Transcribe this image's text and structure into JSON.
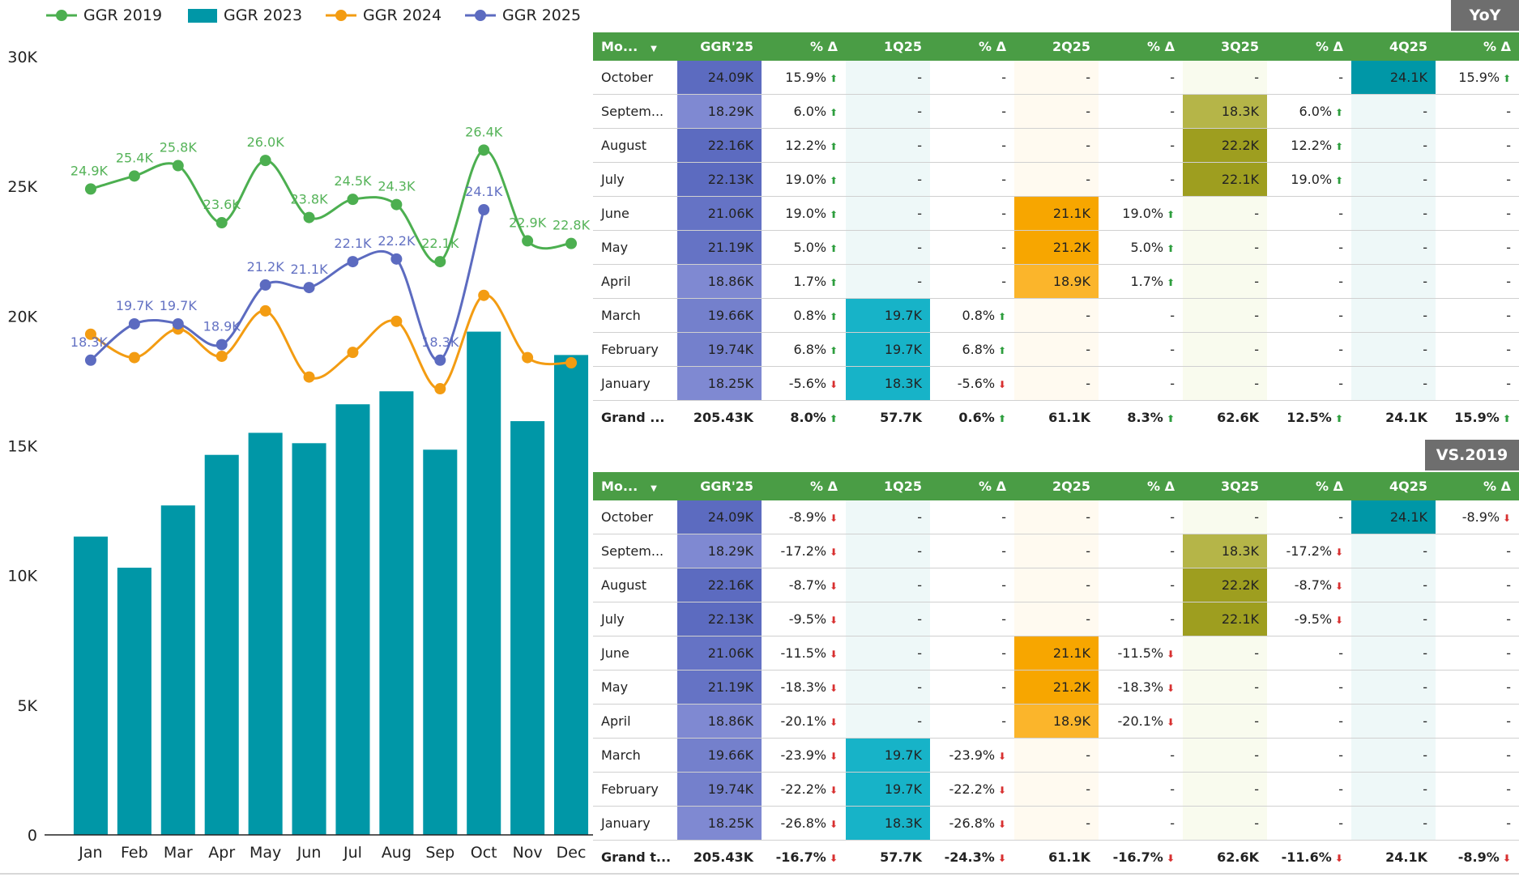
{
  "chart_data": {
    "type": "bar+line",
    "categories": [
      "Jan",
      "Feb",
      "Mar",
      "Apr",
      "May",
      "Jun",
      "Jul",
      "Aug",
      "Sep",
      "Oct",
      "Nov",
      "Dec"
    ],
    "ylim": [
      0,
      30000
    ],
    "yticks": [
      0,
      5000,
      10000,
      15000,
      20000,
      25000,
      30000
    ],
    "ytick_labels": [
      "0",
      "5K",
      "10K",
      "15K",
      "20K",
      "25K",
      "30K"
    ],
    "legend_position": "top",
    "bar_series": {
      "name": "GGR 2023",
      "color": "#0097a7",
      "values": [
        11500,
        10300,
        12700,
        14650,
        15500,
        15100,
        16600,
        17100,
        14850,
        19400,
        15950,
        18500
      ]
    },
    "line_series": [
      {
        "name": "GGR 2019",
        "color": "#4caf50",
        "labels_color": "#4caf50",
        "values": [
          24900,
          25400,
          25800,
          23600,
          26000,
          23800,
          24500,
          24300,
          22100,
          26400,
          22900,
          22800
        ],
        "labels": [
          "24.9K",
          "25.4K",
          "25.8K",
          "23.6K",
          "26.0K",
          "23.8K",
          "24.5K",
          "24.3K",
          "22.1K",
          "26.4K",
          "22.9K",
          "22.8K"
        ]
      },
      {
        "name": "GGR 2024",
        "color": "#f39c12",
        "values": [
          19300,
          18400,
          19500,
          18450,
          20200,
          17650,
          18600,
          19800,
          17200,
          20800,
          18400,
          18200
        ],
        "labels": []
      },
      {
        "name": "GGR 2025",
        "color": "#5c6bc0",
        "values": [
          18300,
          19700,
          19700,
          18900,
          21200,
          21100,
          22100,
          22200,
          18300,
          24100,
          null,
          null
        ],
        "labels": [
          "18.3K",
          "19.7K",
          "19.7K",
          "18.9K",
          "21.2K",
          "21.1K",
          "22.1K",
          "22.2K",
          "18.3K",
          "24.1K",
          "",
          ""
        ]
      }
    ],
    "legend_order": [
      "GGR 2019",
      "GGR 2023",
      "GGR 2024",
      "GGR 2025"
    ]
  },
  "tables": [
    {
      "title": "YoY",
      "headers": [
        "Mo...",
        "GGR'25",
        "% Δ",
        "1Q25",
        "% Δ",
        "2Q25",
        "% Δ",
        "3Q25",
        "% Δ",
        "4Q25",
        "% Δ"
      ],
      "rows": [
        {
          "m": "October",
          "g": "24.09K",
          "p": "15.9%",
          "d": "up",
          "v": [
            null,
            null,
            null,
            null,
            null,
            null,
            "24.1K",
            "15.9%"
          ],
          "vd": [
            null,
            null,
            null,
            null,
            null,
            null,
            null,
            "up"
          ],
          "gc": "#5c6bc0",
          "qc": [
            "#eef8f8",
            "#fffaf0",
            "#f9fbee",
            "#0097a7"
          ]
        },
        {
          "m": "Septem...",
          "g": "18.29K",
          "p": "6.0%",
          "d": "up",
          "v": [
            null,
            null,
            null,
            null,
            "18.3K",
            "6.0%",
            null,
            null
          ],
          "vd": [
            null,
            null,
            null,
            null,
            null,
            "up",
            null,
            null
          ],
          "gc": "#7f89d2",
          "qc": [
            "#eef8f8",
            "#fffaf0",
            "#b5b548",
            "#eef8f8"
          ]
        },
        {
          "m": "August",
          "g": "22.16K",
          "p": "12.2%",
          "d": "up",
          "v": [
            null,
            null,
            null,
            null,
            "22.2K",
            "12.2%",
            null,
            null
          ],
          "vd": [
            null,
            null,
            null,
            null,
            null,
            "up",
            null,
            null
          ],
          "gc": "#5c6bc0",
          "qc": [
            "#eef8f8",
            "#fffaf0",
            "#9e9e1f",
            "#eef8f8"
          ]
        },
        {
          "m": "July",
          "g": "22.13K",
          "p": "19.0%",
          "d": "up",
          "v": [
            null,
            null,
            null,
            null,
            "22.1K",
            "19.0%",
            null,
            null
          ],
          "vd": [
            null,
            null,
            null,
            null,
            null,
            "up",
            null,
            null
          ],
          "gc": "#5c6bc0",
          "qc": [
            "#eef8f8",
            "#fffaf0",
            "#9e9e1f",
            "#eef8f8"
          ]
        },
        {
          "m": "June",
          "g": "21.06K",
          "p": "19.0%",
          "d": "up",
          "v": [
            null,
            null,
            "21.1K",
            "19.0%",
            null,
            null,
            null,
            null
          ],
          "vd": [
            null,
            null,
            null,
            "up",
            null,
            null,
            null,
            null
          ],
          "gc": "#6573c5",
          "qc": [
            "#eef8f8",
            "#f7a600",
            "#f9fbee",
            "#eef8f8"
          ]
        },
        {
          "m": "May",
          "g": "21.19K",
          "p": "5.0%",
          "d": "up",
          "v": [
            null,
            null,
            "21.2K",
            "5.0%",
            null,
            null,
            null,
            null
          ],
          "vd": [
            null,
            null,
            null,
            "up",
            null,
            null,
            null,
            null
          ],
          "gc": "#6573c5",
          "qc": [
            "#eef8f8",
            "#f7a600",
            "#f9fbee",
            "#eef8f8"
          ]
        },
        {
          "m": "April",
          "g": "18.86K",
          "p": "1.7%",
          "d": "up",
          "v": [
            null,
            null,
            "18.9K",
            "1.7%",
            null,
            null,
            null,
            null
          ],
          "vd": [
            null,
            null,
            null,
            "up",
            null,
            null,
            null,
            null
          ],
          "gc": "#7f89d2",
          "qc": [
            "#eef8f8",
            "#fbb52b",
            "#f9fbee",
            "#eef8f8"
          ]
        },
        {
          "m": "March",
          "g": "19.66K",
          "p": "0.8%",
          "d": "up",
          "v": [
            "19.7K",
            "0.8%",
            null,
            null,
            null,
            null,
            null,
            null
          ],
          "vd": [
            null,
            "up",
            null,
            null,
            null,
            null,
            null,
            null
          ],
          "gc": "#7480cc",
          "qc": [
            "#17b3c8",
            "#fffaf0",
            "#f9fbee",
            "#eef8f8"
          ]
        },
        {
          "m": "February",
          "g": "19.74K",
          "p": "6.8%",
          "d": "up",
          "v": [
            "19.7K",
            "6.8%",
            null,
            null,
            null,
            null,
            null,
            null
          ],
          "vd": [
            null,
            "up",
            null,
            null,
            null,
            null,
            null,
            null
          ],
          "gc": "#7480cc",
          "qc": [
            "#17b3c8",
            "#fffaf0",
            "#f9fbee",
            "#eef8f8"
          ]
        },
        {
          "m": "January",
          "g": "18.25K",
          "p": "-5.6%",
          "d": "down",
          "v": [
            "18.3K",
            "-5.6%",
            null,
            null,
            null,
            null,
            null,
            null
          ],
          "vd": [
            null,
            "down",
            null,
            null,
            null,
            null,
            null,
            null
          ],
          "gc": "#7f89d2",
          "qc": [
            "#17b3c8",
            "#fffaf0",
            "#f9fbee",
            "#eef8f8"
          ]
        }
      ],
      "total": {
        "m": "Grand ...",
        "g": "205.43K",
        "p": "8.0%",
        "d": "up",
        "v": [
          "57.7K",
          "0.6%",
          "61.1K",
          "8.3%",
          "62.6K",
          "12.5%",
          "24.1K",
          "15.9%"
        ],
        "vd": [
          null,
          "up",
          null,
          "up",
          null,
          "up",
          null,
          "up"
        ]
      }
    },
    {
      "title": "VS.2019",
      "headers": [
        "Mo...",
        "GGR'25",
        "% Δ",
        "1Q25",
        "% Δ",
        "2Q25",
        "% Δ",
        "3Q25",
        "% Δ",
        "4Q25",
        "% Δ"
      ],
      "rows": [
        {
          "m": "October",
          "g": "24.09K",
          "p": "-8.9%",
          "d": "down",
          "v": [
            null,
            null,
            null,
            null,
            null,
            null,
            "24.1K",
            "-8.9%"
          ],
          "vd": [
            null,
            null,
            null,
            null,
            null,
            null,
            null,
            "down"
          ],
          "gc": "#5c6bc0",
          "qc": [
            "#eef8f8",
            "#fffaf0",
            "#f9fbee",
            "#0097a7"
          ]
        },
        {
          "m": "Septem...",
          "g": "18.29K",
          "p": "-17.2%",
          "d": "down",
          "v": [
            null,
            null,
            null,
            null,
            "18.3K",
            "-17.2%",
            null,
            null
          ],
          "vd": [
            null,
            null,
            null,
            null,
            null,
            "down",
            null,
            null
          ],
          "gc": "#7f89d2",
          "qc": [
            "#eef8f8",
            "#fffaf0",
            "#b5b548",
            "#eef8f8"
          ]
        },
        {
          "m": "August",
          "g": "22.16K",
          "p": "-8.7%",
          "d": "down",
          "v": [
            null,
            null,
            null,
            null,
            "22.2K",
            "-8.7%",
            null,
            null
          ],
          "vd": [
            null,
            null,
            null,
            null,
            null,
            "down",
            null,
            null
          ],
          "gc": "#5c6bc0",
          "qc": [
            "#eef8f8",
            "#fffaf0",
            "#9e9e1f",
            "#eef8f8"
          ]
        },
        {
          "m": "July",
          "g": "22.13K",
          "p": "-9.5%",
          "d": "down",
          "v": [
            null,
            null,
            null,
            null,
            "22.1K",
            "-9.5%",
            null,
            null
          ],
          "vd": [
            null,
            null,
            null,
            null,
            null,
            "down",
            null,
            null
          ],
          "gc": "#5c6bc0",
          "qc": [
            "#eef8f8",
            "#fffaf0",
            "#9e9e1f",
            "#eef8f8"
          ]
        },
        {
          "m": "June",
          "g": "21.06K",
          "p": "-11.5%",
          "d": "down",
          "v": [
            null,
            null,
            "21.1K",
            "-11.5%",
            null,
            null,
            null,
            null
          ],
          "vd": [
            null,
            null,
            null,
            "down",
            null,
            null,
            null,
            null
          ],
          "gc": "#6573c5",
          "qc": [
            "#eef8f8",
            "#f7a600",
            "#f9fbee",
            "#eef8f8"
          ]
        },
        {
          "m": "May",
          "g": "21.19K",
          "p": "-18.3%",
          "d": "down",
          "v": [
            null,
            null,
            "21.2K",
            "-18.3%",
            null,
            null,
            null,
            null
          ],
          "vd": [
            null,
            null,
            null,
            "down",
            null,
            null,
            null,
            null
          ],
          "gc": "#6573c5",
          "qc": [
            "#eef8f8",
            "#f7a600",
            "#f9fbee",
            "#eef8f8"
          ]
        },
        {
          "m": "April",
          "g": "18.86K",
          "p": "-20.1%",
          "d": "down",
          "v": [
            null,
            null,
            "18.9K",
            "-20.1%",
            null,
            null,
            null,
            null
          ],
          "vd": [
            null,
            null,
            null,
            "down",
            null,
            null,
            null,
            null
          ],
          "gc": "#7f89d2",
          "qc": [
            "#eef8f8",
            "#fbb52b",
            "#f9fbee",
            "#eef8f8"
          ]
        },
        {
          "m": "March",
          "g": "19.66K",
          "p": "-23.9%",
          "d": "down",
          "v": [
            "19.7K",
            "-23.9%",
            null,
            null,
            null,
            null,
            null,
            null
          ],
          "vd": [
            null,
            "down",
            null,
            null,
            null,
            null,
            null,
            null
          ],
          "gc": "#7480cc",
          "qc": [
            "#17b3c8",
            "#fffaf0",
            "#f9fbee",
            "#eef8f8"
          ]
        },
        {
          "m": "February",
          "g": "19.74K",
          "p": "-22.2%",
          "d": "down",
          "v": [
            "19.7K",
            "-22.2%",
            null,
            null,
            null,
            null,
            null,
            null
          ],
          "vd": [
            null,
            "down",
            null,
            null,
            null,
            null,
            null,
            null
          ],
          "gc": "#7480cc",
          "qc": [
            "#17b3c8",
            "#fffaf0",
            "#f9fbee",
            "#eef8f8"
          ]
        },
        {
          "m": "January",
          "g": "18.25K",
          "p": "-26.8%",
          "d": "down",
          "v": [
            "18.3K",
            "-26.8%",
            null,
            null,
            null,
            null,
            null,
            null
          ],
          "vd": [
            null,
            "down",
            null,
            null,
            null,
            null,
            null,
            null
          ],
          "gc": "#7f89d2",
          "qc": [
            "#17b3c8",
            "#fffaf0",
            "#f9fbee",
            "#eef8f8"
          ]
        }
      ],
      "total": {
        "m": "Grand t...",
        "g": "205.43K",
        "p": "-16.7%",
        "d": "down",
        "v": [
          "57.7K",
          "-24.3%",
          "61.1K",
          "-16.7%",
          "62.6K",
          "-11.6%",
          "24.1K",
          "-8.9%"
        ],
        "vd": [
          null,
          "down",
          null,
          "down",
          null,
          "down",
          null,
          "down"
        ]
      }
    }
  ],
  "dash": "-"
}
